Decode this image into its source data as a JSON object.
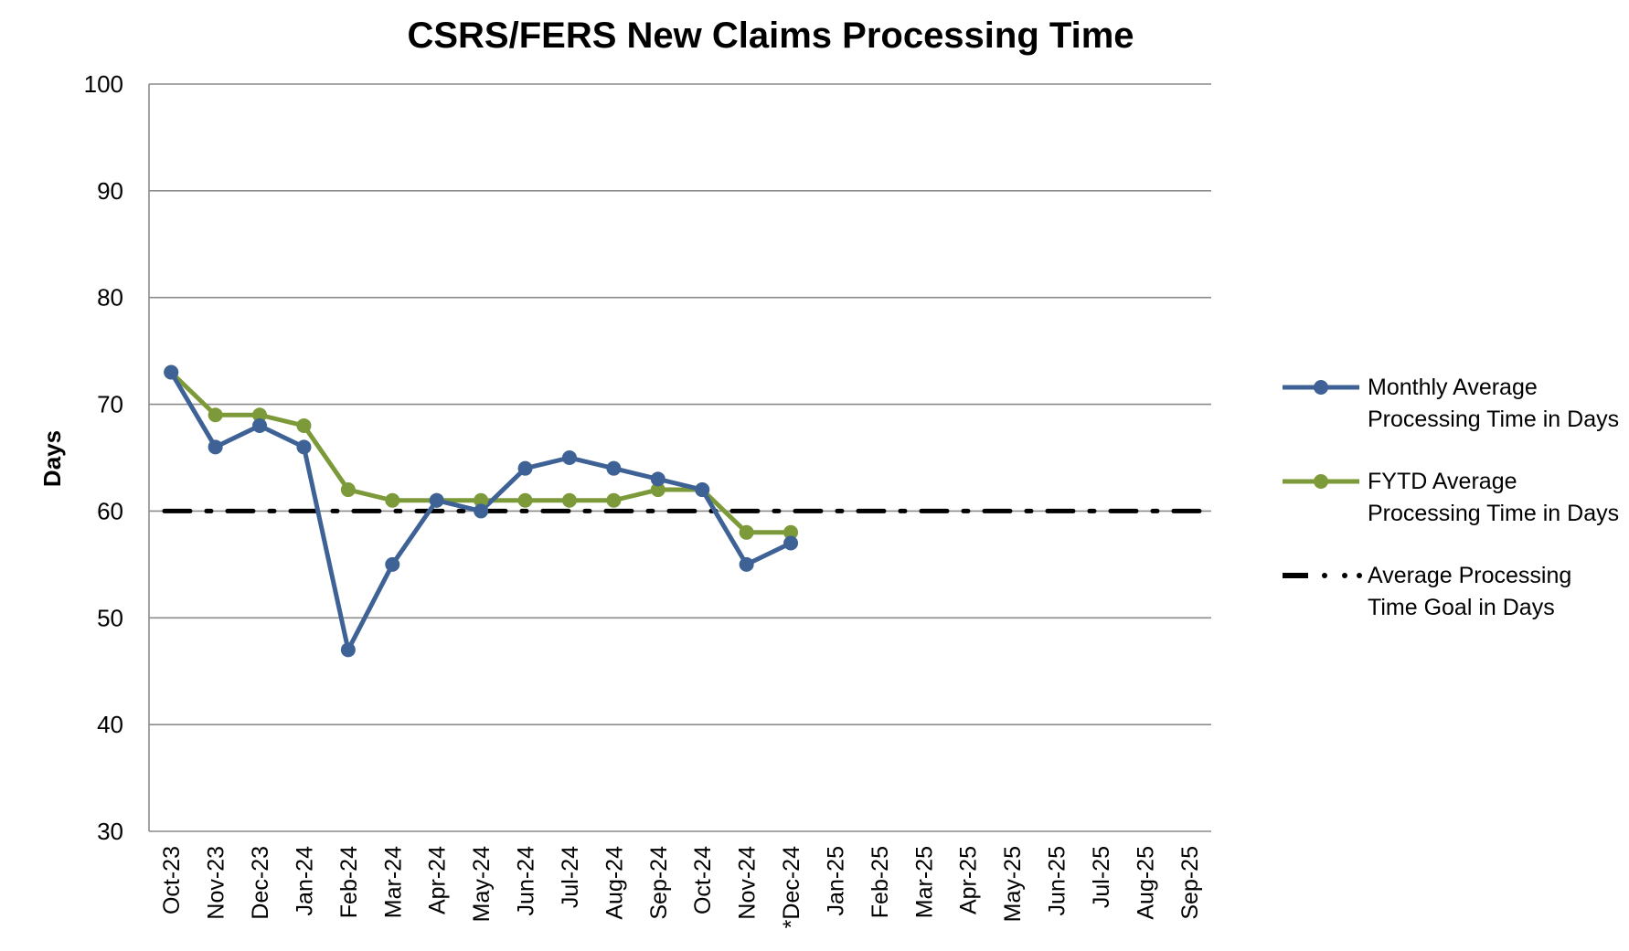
{
  "chart_data": {
    "type": "line",
    "title": "CSRS/FERS New Claims Processing Time",
    "xlabel": "",
    "ylabel": "Days",
    "ylim": [
      30,
      100
    ],
    "yticks": [
      30,
      40,
      50,
      60,
      70,
      80,
      90,
      100
    ],
    "grid": true,
    "legend_position": "right",
    "categories": [
      "Oct-23",
      "Nov-23",
      "Dec-23",
      "Jan-24",
      "Feb-24",
      "Mar-24",
      "Apr-24",
      "May-24",
      "Jun-24",
      "Jul-24",
      "Aug-24",
      "Sep-24",
      "Oct-24",
      "Nov-24",
      "*Dec-24",
      "Jan-25",
      "Feb-25",
      "Mar-25",
      "Apr-25",
      "May-25",
      "Jun-25",
      "Jul-25",
      "Aug-25",
      "Sep-25"
    ],
    "series": [
      {
        "name": "Monthly Average Processing Time in Days",
        "legend_lines": [
          "Monthly Average",
          "Processing Time in Days"
        ],
        "color": "#3E6296",
        "style": "solid-markers",
        "values": [
          73,
          66,
          68,
          66,
          47,
          55,
          61,
          60,
          64,
          65,
          64,
          63,
          62,
          55,
          57,
          null,
          null,
          null,
          null,
          null,
          null,
          null,
          null,
          null
        ]
      },
      {
        "name": "FYTD Average Processing Time in Days",
        "legend_lines": [
          "FYTD Average",
          "Processing Time in Days"
        ],
        "color": "#7D9A3A",
        "style": "solid-markers",
        "values": [
          73,
          69,
          69,
          68,
          62,
          61,
          61,
          61,
          61,
          61,
          61,
          62,
          62,
          58,
          58,
          null,
          null,
          null,
          null,
          null,
          null,
          null,
          null,
          null
        ]
      },
      {
        "name": "Average Processing Time Goal in Days",
        "legend_lines": [
          "Average Processing",
          "Time Goal in Days"
        ],
        "color": "#000000",
        "style": "dash-dot",
        "values": [
          60,
          60,
          60,
          60,
          60,
          60,
          60,
          60,
          60,
          60,
          60,
          60,
          60,
          60,
          60,
          60,
          60,
          60,
          60,
          60,
          60,
          60,
          60,
          60
        ]
      }
    ]
  }
}
